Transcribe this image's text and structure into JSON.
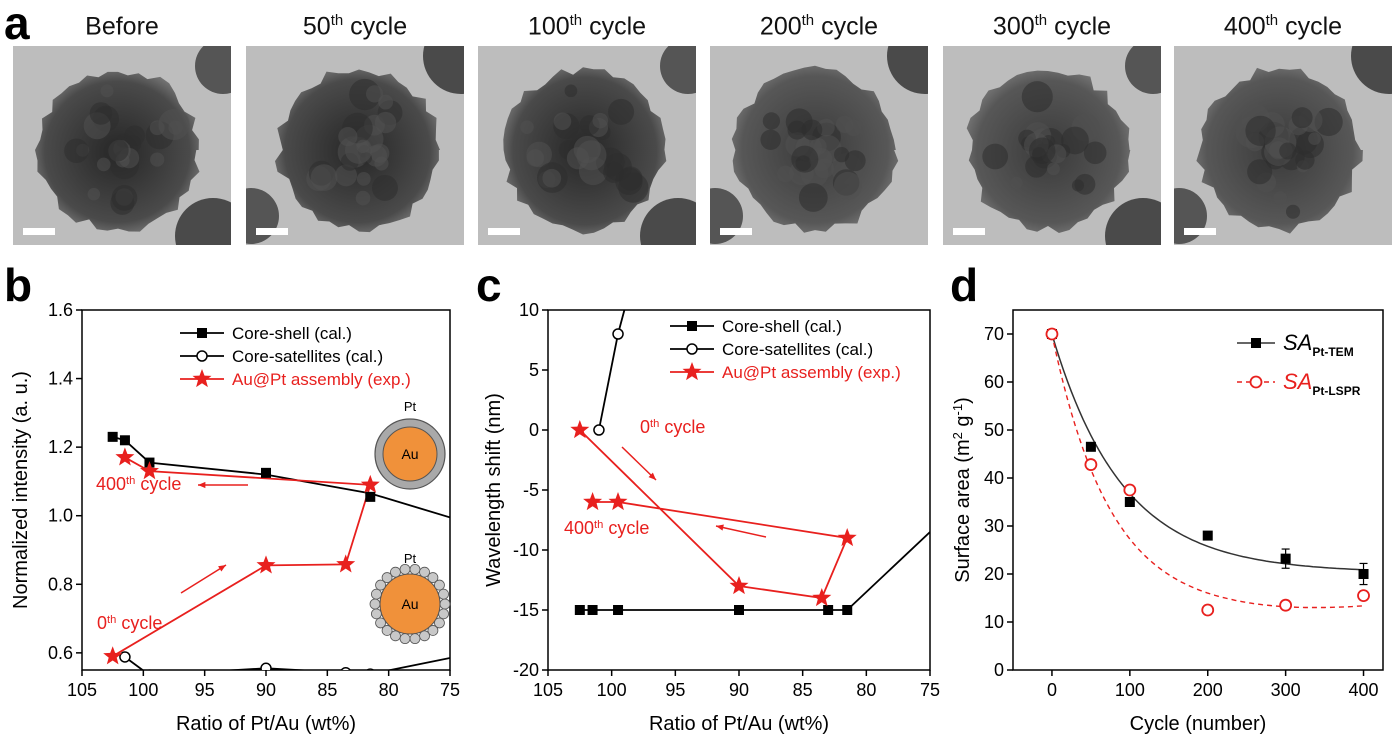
{
  "panel_labels": {
    "a": "a",
    "b": "b",
    "c": "c",
    "d": "d"
  },
  "tem_panels": [
    {
      "label": "Before",
      "sup": "",
      "tail": ""
    },
    {
      "label": "50",
      "sup": "th",
      "tail": " cycle"
    },
    {
      "label": "100",
      "sup": "th",
      "tail": " cycle"
    },
    {
      "label": "200",
      "sup": "th",
      "tail": " cycle"
    },
    {
      "label": "300",
      "sup": "th",
      "tail": " cycle"
    },
    {
      "label": "400",
      "sup": "th",
      "tail": " cycle"
    }
  ],
  "colors": {
    "black": "#000000",
    "red": "#e8201e",
    "gold": "#f0913a",
    "shell": "#a9a9a9"
  },
  "chart_data": [
    {
      "type": "line",
      "panel": "b",
      "xlabel": "Ratio of Pt/Au (wt%)",
      "ylabel": "Normalized intensity (a. u.)",
      "xlim": [
        105,
        75
      ],
      "ylim": [
        0.55,
        1.6
      ],
      "xticks": [
        105,
        100,
        95,
        90,
        85,
        80,
        75
      ],
      "yticks": [
        0.6,
        0.8,
        1.0,
        1.2,
        1.4,
        1.6
      ],
      "ytick_labels": [
        "0.6",
        "0.8",
        "1.0",
        "1.2",
        "1.4",
        "1.6"
      ],
      "legend": [
        "Core-shell (cal.)",
        "Core-satellites (cal.)",
        "Au@Pt assembly (exp.)"
      ],
      "series": [
        {
          "name": "Core-shell (cal.)",
          "marker": "square",
          "x": [
            102.5,
            101.5,
            99.5,
            90,
            81.5
          ],
          "y": [
            1.23,
            1.22,
            1.155,
            1.125,
            1.055
          ],
          "line_x": [
            102.5,
            101.5,
            99.5,
            90,
            81.5,
            75
          ],
          "line_y": [
            1.23,
            1.22,
            1.155,
            1.12,
            1.065,
            0.995
          ]
        },
        {
          "name": "Core-satellites (cal.)",
          "marker": "circle",
          "x": [
            101.5,
            99.5,
            90,
            83.5,
            81.5
          ],
          "y": [
            0.588,
            0.535,
            0.555,
            0.542,
            0.538
          ],
          "line_x": [
            101.5,
            99.5,
            90,
            83.5,
            81.5,
            75
          ],
          "line_y": [
            0.588,
            0.535,
            0.555,
            0.542,
            0.538,
            0.585
          ]
        },
        {
          "name": "Au@Pt assembly (exp.)",
          "marker": "star",
          "x": [
            102.5,
            90,
            83.5,
            81.5,
            99.5,
            101.5
          ],
          "y": [
            0.59,
            0.855,
            0.858,
            1.09,
            1.13,
            1.17
          ]
        }
      ],
      "annotations": [
        {
          "text": "400",
          "sup": "th",
          "tail": " cycle"
        },
        {
          "text": "0",
          "sup": "th",
          "tail": " cycle"
        }
      ],
      "inset_labels": {
        "shell_label": "Pt",
        "core_label": "Au"
      }
    },
    {
      "type": "line",
      "panel": "c",
      "xlabel": "Ratio of Pt/Au (wt%)",
      "ylabel": "Wavelength shift (nm)",
      "xlim": [
        105,
        75
      ],
      "ylim": [
        -20,
        10
      ],
      "xticks": [
        105,
        100,
        95,
        90,
        85,
        80,
        75
      ],
      "yticks": [
        -20,
        -15,
        -10,
        -5,
        0,
        5,
        10
      ],
      "legend": [
        "Core-shell (cal.)",
        "Core-satellites (cal.)",
        "Au@Pt assembly (exp.)"
      ],
      "series": [
        {
          "name": "Core-shell (cal.)",
          "marker": "square",
          "x": [
            102.5,
            101.5,
            99.5,
            90,
            83,
            81.5
          ],
          "y": [
            -15,
            -15,
            -15,
            -15,
            -15,
            -15
          ],
          "line_x": [
            102.5,
            101.5,
            99.5,
            90,
            83,
            81.5,
            75
          ],
          "line_y": [
            -15,
            -15,
            -15,
            -15,
            -15,
            -15,
            -8.5
          ]
        },
        {
          "name": "Core-satellites (cal.)",
          "marker": "circle",
          "x": [
            101,
            99.5
          ],
          "y": [
            0,
            8
          ],
          "line_x": [
            101,
            99.5,
            99
          ],
          "line_y": [
            0,
            8,
            10
          ]
        },
        {
          "name": "Au@Pt assembly (exp.)",
          "marker": "star",
          "x": [
            102.5,
            90,
            83.5,
            81.5,
            99.5,
            101.5
          ],
          "y": [
            0,
            -13,
            -14,
            -9,
            -6,
            -6
          ]
        }
      ],
      "annotations": [
        {
          "text": "0",
          "sup": "th",
          "tail": " cycle"
        },
        {
          "text": "400",
          "sup": "th",
          "tail": " cycle"
        }
      ]
    },
    {
      "type": "line",
      "panel": "d",
      "xlabel": "Cycle (number)",
      "ylabel": "Surface area (m² g⁻¹)",
      "ylabel_parts": {
        "pre": "Surface area (m",
        "sup1": "2",
        "mid": " g",
        "sup2": "-1",
        "post": ")"
      },
      "xlim": [
        -50,
        425
      ],
      "ylim": [
        0,
        75
      ],
      "xticks": [
        0,
        100,
        200,
        300,
        400
      ],
      "yticks": [
        0,
        10,
        20,
        30,
        40,
        50,
        60,
        70
      ],
      "legend": [
        "SA Pt-TEM",
        "SA Pt-LSPR"
      ],
      "legend_parts": [
        {
          "main": "SA",
          "sub": "Pt-TEM"
        },
        {
          "main": "SA",
          "sub": "Pt-LSPR"
        }
      ],
      "series": [
        {
          "name": "SA Pt-TEM",
          "marker": "square",
          "x": [
            0,
            50,
            100,
            200,
            300,
            400
          ],
          "y": [
            70,
            46.5,
            35,
            28,
            23.2,
            20
          ],
          "yerr": [
            0.6,
            0.8,
            0.8,
            0.6,
            2.0,
            2.2
          ],
          "fit": "exp",
          "fit_params": {
            "a": 49.5,
            "t": 90,
            "c": 20.5,
            "t2": 900
          }
        },
        {
          "name": "SA Pt-LSPR",
          "marker": "open-circle",
          "x": [
            0,
            50,
            100,
            200,
            300,
            400
          ],
          "y": [
            70,
            42.8,
            37.5,
            12.5,
            13.5,
            15.5
          ],
          "fit": "dashed-poly"
        }
      ]
    }
  ]
}
